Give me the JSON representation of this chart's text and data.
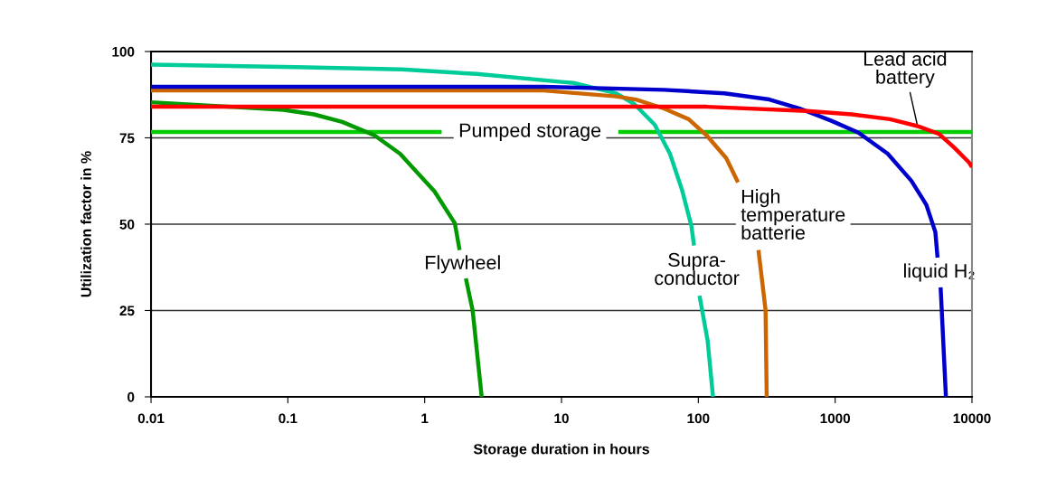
{
  "chart_data": {
    "type": "line",
    "xlabel": "Storage duration in hours",
    "ylabel": "Utilization factor in %",
    "log": "x",
    "xlim": [
      0.01,
      10000
    ],
    "xticks": [
      0.01,
      0.1,
      1,
      10,
      100,
      1000,
      10000
    ],
    "ylim": [
      0,
      100
    ],
    "yticks": [
      0,
      25,
      50,
      75,
      100
    ],
    "grid": "y",
    "marker": "none",
    "line_style": "solid",
    "series": [
      {
        "name": "Pumped storage",
        "color": "#00cc00",
        "x": [
          0.01,
          1.33,
          6,
          26,
          10000
        ],
        "values": [
          76.7,
          76.7,
          null,
          76.7,
          76.7
        ]
      },
      {
        "name": "Flywheel",
        "color": "#009900",
        "x": [
          0.01,
          0.093,
          0.155,
          0.25,
          0.43,
          0.66,
          1.18,
          1.66,
          1.8,
          1.9,
          2.0,
          2.24,
          2.61
        ],
        "values": [
          85.3,
          83.1,
          81.8,
          79.6,
          75.7,
          70.4,
          59.5,
          50.3,
          42.5,
          null,
          34.3,
          25.1,
          0
        ]
      },
      {
        "name": "Supra-\nconductor",
        "color": "#00cc99",
        "x": [
          0.01,
          0.115,
          0.68,
          2.4,
          10,
          12.2,
          25,
          34,
          48,
          62,
          76,
          89,
          93,
          97,
          102,
          117,
          128
        ],
        "values": [
          96.2,
          95.5,
          94.8,
          93.5,
          91.2,
          90.9,
          87.9,
          84.8,
          78.8,
          70.4,
          59.9,
          49.5,
          43.8,
          null,
          29.3,
          16.2,
          0
        ]
      },
      {
        "name": "High\ntemperature\nbatterie",
        "color": "#cc6600",
        "x": [
          0.01,
          7.4,
          25,
          35,
          56,
          85,
          115,
          160,
          195,
          240,
          275,
          310,
          316
        ],
        "values": [
          88.7,
          88.7,
          87.0,
          86.1,
          83.5,
          80.4,
          75.7,
          69.1,
          62.1,
          null,
          42.5,
          25.1,
          0
        ]
      },
      {
        "name": "liquid H₂",
        "color": "#0000cc",
        "x": [
          0.01,
          7.4,
          56,
          155,
          330,
          550,
          930,
          1480,
          2420,
          3600,
          4640,
          5400,
          5600,
          5750,
          5900,
          6450
        ],
        "values": [
          89.8,
          89.8,
          88.9,
          87.9,
          86.1,
          83.5,
          80.0,
          76.5,
          70.4,
          62.6,
          55.6,
          47.7,
          40.3,
          null,
          31.7,
          0
        ]
      },
      {
        "name": "Lead acid\nbattery",
        "color": "#ff0000",
        "x": [
          0.01,
          115,
          620,
          1320,
          2520,
          4000,
          5760,
          7400,
          9550,
          10000
        ],
        "values": [
          84.0,
          84.0,
          82.8,
          81.8,
          80.4,
          78.4,
          76.1,
          72.2,
          67.8,
          66.5
        ]
      }
    ]
  }
}
